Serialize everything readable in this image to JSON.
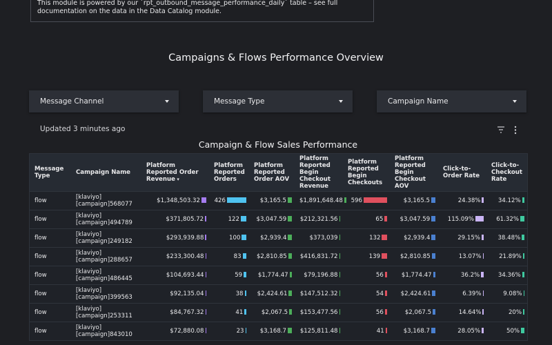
{
  "info": "This module is powered by our `rpt_outbound_message_performance_daily` table – see full documentation on the data in the Data Catalog module.",
  "title": "Campaigns & Flows Performance Overview",
  "filters": [
    "Message Channel",
    "Message Type",
    "Campaign Name"
  ],
  "status": "Updated 3 minutes ago",
  "table": {
    "title": "Campaign & Flow Sales Performance",
    "columns": [
      {
        "label": "Message Type"
      },
      {
        "label": "Campaign Name"
      },
      {
        "label": "Platform Reported Order Revenue",
        "bar_color": "#a57cf0"
      },
      {
        "label": "Platform Reported Orders",
        "bar_color": "#4fc3f0"
      },
      {
        "label": "Platform Reported Order AOV",
        "bar_color": "#4cae5a"
      },
      {
        "label": "Platform Reported Begin Checkout Revenue",
        "bar_color": "#4cae5a"
      },
      {
        "label": "Platform Reported Begin Checkouts",
        "bar_color": "#e0505e"
      },
      {
        "label": "Platform Reported Begin Checkout AOV",
        "bar_color": "#4a80d0"
      },
      {
        "label": "Click-to-Order Rate",
        "bar_color": "#c9b4f5"
      },
      {
        "label": "Click-to-Checkout Rate",
        "bar_color": "#3ec99f"
      }
    ],
    "rows": [
      {
        "message_type": "flow",
        "campaign": "[klaviyo] [campaign]568077",
        "metrics": [
          {
            "value": 1348503.32,
            "label": "$1,348,503.32"
          },
          426,
          {
            "value": 3165.5,
            "label": "$3,165.5"
          },
          {
            "value": 1891648.48,
            "label": "$1,891,648.48"
          },
          596,
          {
            "value": 3165.5,
            "label": "$3,165.5"
          },
          {
            "value": 24.38,
            "label": "24.38%"
          },
          {
            "value": 34.12,
            "label": "34.12%"
          }
        ]
      },
      {
        "message_type": "flow",
        "campaign": "[klaviyo] [campaign]494789",
        "metrics": [
          {
            "value": 371805.72,
            "label": "$371,805.72"
          },
          122,
          {
            "value": 3047.59,
            "label": "$3,047.59"
          },
          {
            "value": 212321.56,
            "label": "$212,321.56"
          },
          65,
          {
            "value": 3047.59,
            "label": "$3,047.59"
          },
          {
            "value": 115.09,
            "label": "115.09%"
          },
          {
            "value": 61.32,
            "label": "61.32%"
          }
        ]
      },
      {
        "message_type": "flow",
        "campaign": "[klaviyo] [campaign]249182",
        "metrics": [
          {
            "value": 293939.88,
            "label": "$293,939.88"
          },
          100,
          {
            "value": 2939.4,
            "label": "$2,939.4"
          },
          {
            "value": 373039,
            "label": "$373,039"
          },
          132,
          {
            "value": 2939.4,
            "label": "$2,939.4"
          },
          {
            "value": 29.15,
            "label": "29.15%"
          },
          {
            "value": 38.48,
            "label": "38.48%"
          }
        ]
      },
      {
        "message_type": "flow",
        "campaign": "[klaviyo] [campaign]288657",
        "metrics": [
          {
            "value": 233300.48,
            "label": "$233,300.48"
          },
          83,
          {
            "value": 2810.85,
            "label": "$2,810.85"
          },
          {
            "value": 416831.72,
            "label": "$416,831.72"
          },
          139,
          {
            "value": 2810.85,
            "label": "$2,810.85"
          },
          {
            "value": 13.07,
            "label": "13.07%"
          },
          {
            "value": 21.89,
            "label": "21.89%"
          }
        ]
      },
      {
        "message_type": "flow",
        "campaign": "[klaviyo] [campaign]486445",
        "metrics": [
          {
            "value": 104693.44,
            "label": "$104,693.44"
          },
          59,
          {
            "value": 1774.47,
            "label": "$1,774.47"
          },
          {
            "value": 79196.88,
            "label": "$79,196.88"
          },
          56,
          {
            "value": 1774.47,
            "label": "$1,774.47"
          },
          {
            "value": 36.2,
            "label": "36.2%"
          },
          {
            "value": 34.36,
            "label": "34.36%"
          }
        ]
      },
      {
        "message_type": "flow",
        "campaign": "[klaviyo] [campaign]399563",
        "metrics": [
          {
            "value": 92135.04,
            "label": "$92,135.04"
          },
          38,
          {
            "value": 2424.61,
            "label": "$2,424.61"
          },
          {
            "value": 147512.32,
            "label": "$147,512.32"
          },
          54,
          {
            "value": 2424.61,
            "label": "$2,424.61"
          },
          {
            "value": 6.39,
            "label": "6.39%"
          },
          {
            "value": 9.08,
            "label": "9.08%"
          }
        ]
      },
      {
        "message_type": "flow",
        "campaign": "[klaviyo] [campaign]253311",
        "metrics": [
          {
            "value": 84767.32,
            "label": "$84,767.32"
          },
          41,
          {
            "value": 2067.5,
            "label": "$2,067.5"
          },
          {
            "value": 153477.56,
            "label": "$153,477.56"
          },
          56,
          {
            "value": 2067.5,
            "label": "$2,067.5"
          },
          {
            "value": 14.64,
            "label": "14.64%"
          },
          {
            "value": 20,
            "label": "20%"
          }
        ]
      },
      {
        "message_type": "flow",
        "campaign": "[klaviyo] [campaign]843010",
        "metrics": [
          {
            "value": 72880.08,
            "label": "$72,880.08"
          },
          23,
          {
            "value": 3168.7,
            "label": "$3,168.7"
          },
          {
            "value": 125811.48,
            "label": "$125,811.48"
          },
          41,
          {
            "value": 3168.7,
            "label": "$3,168.7"
          },
          {
            "value": 28.05,
            "label": "28.05%"
          },
          {
            "value": 50,
            "label": "50%"
          }
        ]
      }
    ]
  }
}
